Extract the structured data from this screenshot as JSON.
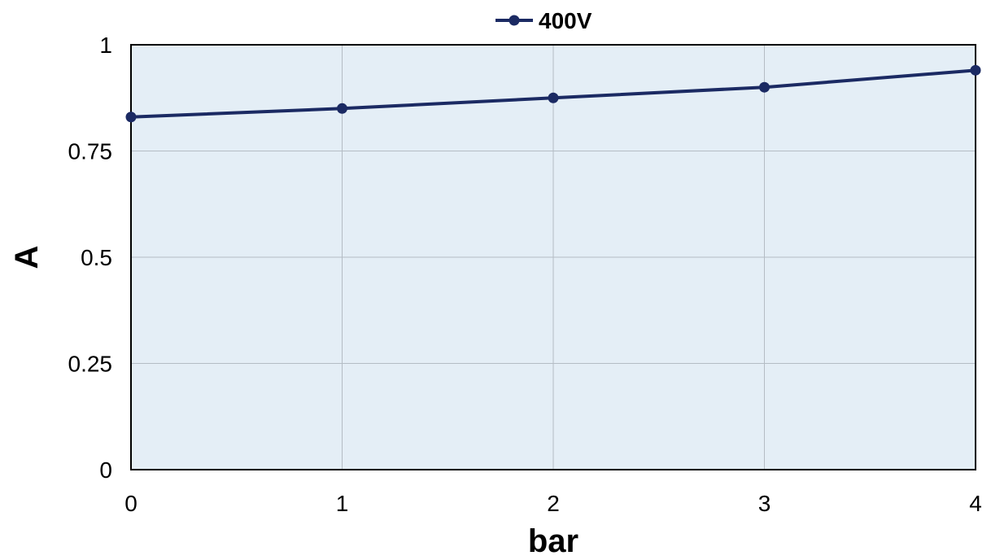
{
  "chart_data": {
    "type": "line",
    "xlabel": "bar",
    "ylabel": "A",
    "xlim": [
      0,
      4
    ],
    "ylim": [
      0,
      1
    ],
    "x_ticks": [
      "0",
      "1",
      "2",
      "3",
      "4"
    ],
    "y_ticks": [
      "0",
      "0.25",
      "0.5",
      "0.75",
      "1"
    ],
    "x_tick_values": [
      0,
      1,
      2,
      3,
      4
    ],
    "y_tick_values": [
      0,
      0.25,
      0.5,
      0.75,
      1
    ],
    "grid": true,
    "legend_position": "top-center",
    "plot_background": "#e4eef6",
    "series": [
      {
        "name": "400V",
        "color": "#1b2a63",
        "x": [
          0,
          1,
          2,
          3,
          4
        ],
        "y": [
          0.83,
          0.85,
          0.875,
          0.9,
          0.94
        ]
      }
    ]
  }
}
